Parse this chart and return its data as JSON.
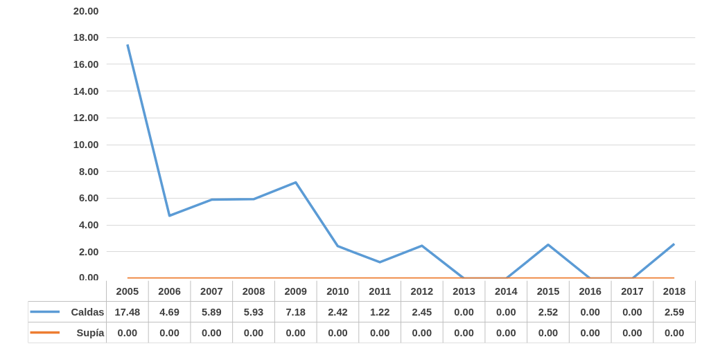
{
  "chart_data": {
    "type": "line",
    "categories": [
      "2005",
      "2006",
      "2007",
      "2008",
      "2009",
      "2010",
      "2011",
      "2012",
      "2013",
      "2014",
      "2015",
      "2016",
      "2017",
      "2018"
    ],
    "series": [
      {
        "name": "Caldas",
        "color": "#5b9bd5",
        "values": [
          17.48,
          4.69,
          5.89,
          5.93,
          7.18,
          2.42,
          1.22,
          2.45,
          0,
          0,
          2.52,
          0,
          0,
          2.59
        ],
        "value_labels": [
          "17.48",
          "4.69",
          "5.89",
          "5.93",
          "7.18",
          "2.42",
          "1.22",
          "2.45",
          "0.00",
          "0.00",
          "2.52",
          "0.00",
          "0.00",
          "2.59"
        ]
      },
      {
        "name": "Supía",
        "color": "#ed7d31",
        "values": [
          0,
          0,
          0,
          0,
          0,
          0,
          0,
          0,
          0,
          0,
          0,
          0,
          0,
          0
        ],
        "value_labels": [
          "0.00",
          "0.00",
          "0.00",
          "0.00",
          "0.00",
          "0.00",
          "0.00",
          "0.00",
          "0.00",
          "0.00",
          "0.00",
          "0.00",
          "0.00",
          "0.00"
        ]
      }
    ],
    "ylim": [
      0,
      20
    ],
    "yticks": [
      {
        "value": 0,
        "label": "0.00"
      },
      {
        "value": 2,
        "label": "2.00"
      },
      {
        "value": 4,
        "label": "4.00"
      },
      {
        "value": 6,
        "label": "6.00"
      },
      {
        "value": 8,
        "label": "8.00"
      },
      {
        "value": 10,
        "label": "10.00"
      },
      {
        "value": 12,
        "label": "12.00"
      },
      {
        "value": 14,
        "label": "14.00"
      },
      {
        "value": 16,
        "label": "16.00"
      },
      {
        "value": 18,
        "label": "18.00"
      },
      {
        "value": 20,
        "label": "20.00"
      }
    ],
    "grid": "y",
    "legend": "bottom",
    "marker": "none",
    "line_style": "solid"
  }
}
